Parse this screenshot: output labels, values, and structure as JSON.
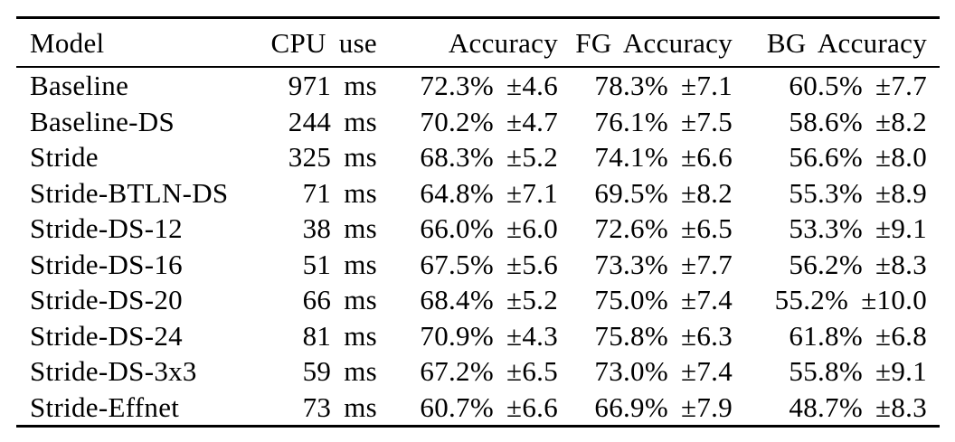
{
  "page": {
    "background": "#ffffff",
    "text_color": "#000000",
    "rule_color": "#000000"
  },
  "table": {
    "columns": [
      {
        "id": "model",
        "label": "Model",
        "align": "left"
      },
      {
        "id": "cpu",
        "label": "CPU use",
        "align": "right"
      },
      {
        "id": "accuracy",
        "label": "Accuracy",
        "align": "right"
      },
      {
        "id": "fg_accuracy",
        "label": "FG Accuracy",
        "align": "right"
      },
      {
        "id": "bg_accuracy",
        "label": "BG Accuracy",
        "align": "right"
      }
    ],
    "rows": [
      {
        "model": "Baseline",
        "cpu": "971 ms",
        "accuracy": "72.3% ±4.6",
        "fg_accuracy": "78.3% ±7.1",
        "bg_accuracy": "60.5% ±7.7"
      },
      {
        "model": "Baseline-DS",
        "cpu": "244 ms",
        "accuracy": "70.2% ±4.7",
        "fg_accuracy": "76.1% ±7.5",
        "bg_accuracy": "58.6% ±8.2"
      },
      {
        "model": "Stride",
        "cpu": "325 ms",
        "accuracy": "68.3% ±5.2",
        "fg_accuracy": "74.1% ±6.6",
        "bg_accuracy": "56.6% ±8.0"
      },
      {
        "model": "Stride-BTLN-DS",
        "cpu": "71 ms",
        "accuracy": "64.8% ±7.1",
        "fg_accuracy": "69.5% ±8.2",
        "bg_accuracy": "55.3% ±8.9"
      },
      {
        "model": "Stride-DS-12",
        "cpu": "38 ms",
        "accuracy": "66.0% ±6.0",
        "fg_accuracy": "72.6% ±6.5",
        "bg_accuracy": "53.3% ±9.1"
      },
      {
        "model": "Stride-DS-16",
        "cpu": "51 ms",
        "accuracy": "67.5% ±5.6",
        "fg_accuracy": "73.3% ±7.7",
        "bg_accuracy": "56.2% ±8.3"
      },
      {
        "model": "Stride-DS-20",
        "cpu": "66 ms",
        "accuracy": "68.4% ±5.2",
        "fg_accuracy": "75.0% ±7.4",
        "bg_accuracy": "55.2% ±10.0"
      },
      {
        "model": "Stride-DS-24",
        "cpu": "81 ms",
        "accuracy": "70.9% ±4.3",
        "fg_accuracy": "75.8% ±6.3",
        "bg_accuracy": "61.8% ±6.8"
      },
      {
        "model": "Stride-DS-3x3",
        "cpu": "59 ms",
        "accuracy": "67.2% ±6.5",
        "fg_accuracy": "73.0% ±7.4",
        "bg_accuracy": "55.8% ±9.1"
      },
      {
        "model": "Stride-Effnet",
        "cpu": "73 ms",
        "accuracy": "60.7% ±6.6",
        "fg_accuracy": "66.9% ±7.9",
        "bg_accuracy": "48.7% ±8.3"
      }
    ]
  }
}
